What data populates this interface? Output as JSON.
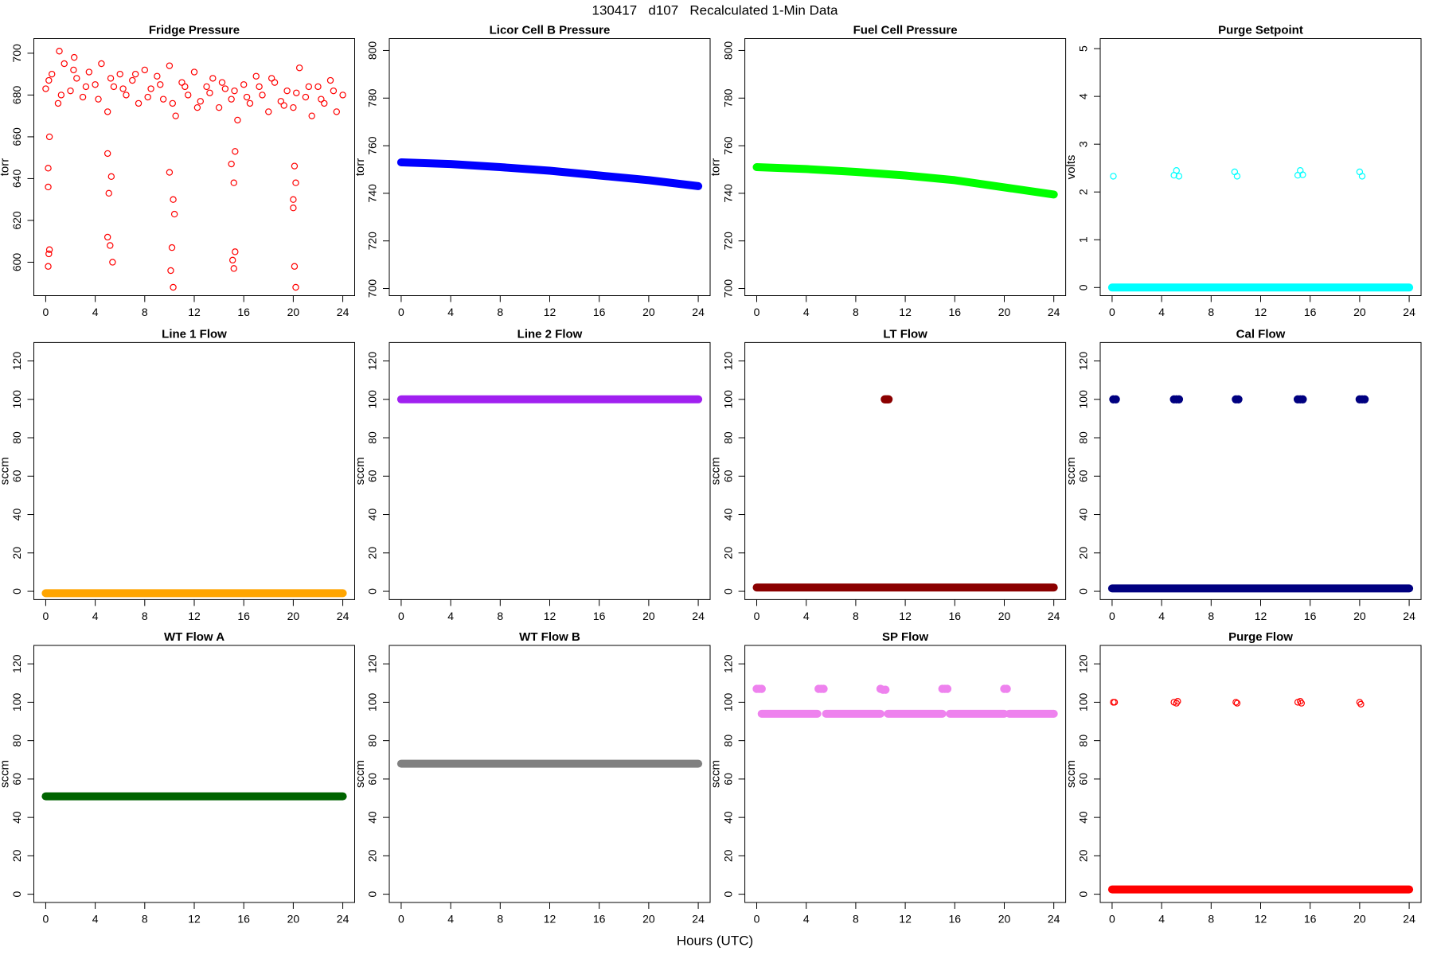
{
  "title": "130417   d107   Recalculated 1-Min Data",
  "x_label": "Hours (UTC)",
  "chart_data": [
    {
      "type": "scatter",
      "title": "Fridge Pressure",
      "y_label": "torr",
      "xlim": [
        -0.96,
        24.96
      ],
      "xticks": [
        0,
        4,
        8,
        12,
        16,
        20,
        24
      ],
      "ylim": [
        584,
        707
      ],
      "yticks": [
        600,
        620,
        640,
        660,
        680,
        700
      ],
      "series": [
        {
          "mode": "points",
          "marker": "open",
          "color": "#ff0000",
          "x": [
            0,
            0.5,
            1,
            1.5,
            2,
            2.5,
            3,
            3.5,
            4,
            4.5,
            5,
            5.5,
            6,
            6.5,
            7,
            7.5,
            8,
            8.5,
            9,
            9.5,
            10,
            10.5,
            11,
            11.5,
            12,
            12.5,
            13,
            13.5,
            14,
            14.5,
            15,
            15.5,
            16,
            16.5,
            17,
            17.5,
            18,
            18.5,
            19,
            19.5,
            20,
            20.5,
            21,
            21.5,
            22,
            22.5,
            23,
            23.5,
            24,
            0.25,
            1.25,
            2.25,
            3.25,
            4.25,
            5.25,
            6.25,
            7.25,
            8.25,
            9.25,
            10.25,
            11.25,
            12.25,
            13.25,
            14.25,
            15.25,
            16.25,
            17.25,
            18.25,
            19.25,
            20.25,
            21.25,
            22.25,
            23.25,
            1.1,
            2.3,
            0.2,
            0.3,
            0.2,
            0.25,
            0.2,
            0.3,
            5.0,
            5.3,
            5.1,
            5.2,
            5.4,
            5.0,
            10.0,
            10.3,
            10.4,
            10.2,
            10.3,
            10.1,
            15.0,
            15.2,
            15.3,
            15.1,
            15.3,
            15.2,
            20.1,
            20.0,
            20.2,
            20.1,
            20.2,
            20.0
          ],
          "values": [
            683,
            690,
            676,
            695,
            682,
            688,
            679,
            691,
            685,
            695,
            672,
            684,
            690,
            680,
            687,
            676,
            692,
            683,
            689,
            678,
            694,
            670,
            686,
            680,
            691,
            677,
            684,
            688,
            674,
            683,
            678,
            668,
            685,
            676,
            689,
            680,
            672,
            686,
            677,
            682,
            674,
            693,
            679,
            670,
            684,
            676,
            687,
            672,
            680,
            687,
            680,
            692,
            684,
            678,
            688,
            683,
            690,
            679,
            685,
            676,
            684,
            674,
            681,
            686,
            682,
            679,
            684,
            688,
            675,
            681,
            684,
            678,
            682,
            701,
            698,
            645,
            660,
            636,
            604,
            598,
            606,
            652,
            641,
            633,
            608,
            600,
            612,
            643,
            630,
            623,
            607,
            588,
            596,
            647,
            638,
            653,
            601,
            605,
            597,
            646,
            630,
            638,
            598,
            588,
            626
          ]
        }
      ]
    },
    {
      "type": "scatter",
      "title": "Licor Cell B Pressure",
      "y_label": "torr",
      "xlim": [
        -0.96,
        24.96
      ],
      "xticks": [
        0,
        4,
        8,
        12,
        16,
        20,
        24
      ],
      "ylim": [
        697,
        805
      ],
      "yticks": [
        700,
        720,
        740,
        760,
        780,
        800
      ],
      "series": [
        {
          "mode": "band",
          "color": "#0000ff",
          "x": [
            0,
            4,
            8,
            12,
            16,
            20,
            24
          ],
          "values": [
            753,
            752.3,
            751,
            749.5,
            747.5,
            745.5,
            743
          ]
        }
      ]
    },
    {
      "type": "scatter",
      "title": "Fuel Cell Pressure",
      "y_label": "torr",
      "xlim": [
        -0.96,
        24.96
      ],
      "xticks": [
        0,
        4,
        8,
        12,
        16,
        20,
        24
      ],
      "ylim": [
        697,
        805
      ],
      "yticks": [
        700,
        720,
        740,
        760,
        780,
        800
      ],
      "series": [
        {
          "mode": "band",
          "color": "#00ff00",
          "x": [
            0,
            4,
            8,
            12,
            16,
            20,
            24
          ],
          "values": [
            751,
            750.2,
            749,
            747.5,
            745.5,
            742.5,
            739.5
          ]
        }
      ]
    },
    {
      "type": "scatter",
      "title": "Purge Setpoint",
      "y_label": "volts",
      "xlim": [
        -0.96,
        24.96
      ],
      "xticks": [
        0,
        4,
        8,
        12,
        16,
        20,
        24
      ],
      "ylim": [
        -0.17,
        5.21
      ],
      "yticks": [
        0,
        1,
        2,
        3,
        4,
        5
      ],
      "series": [
        {
          "mode": "band",
          "color": "#00ffff",
          "x": [
            0,
            24
          ],
          "values": [
            0,
            0
          ]
        },
        {
          "mode": "points",
          "marker": "open",
          "color": "#00ffff",
          "x": [
            0.1,
            5.0,
            5.2,
            5.4,
            9.9,
            10.1,
            15.0,
            15.2,
            15.4,
            20.0,
            20.2
          ],
          "values": [
            2.33,
            2.35,
            2.45,
            2.33,
            2.42,
            2.33,
            2.35,
            2.45,
            2.36,
            2.42,
            2.33
          ]
        }
      ]
    },
    {
      "type": "scatter",
      "title": "Line 1 Flow",
      "y_label": "sccm",
      "xlim": [
        -0.96,
        24.96
      ],
      "xticks": [
        0,
        4,
        8,
        12,
        16,
        20,
        24
      ],
      "ylim": [
        -4.3,
        129.6
      ],
      "yticks": [
        0,
        20,
        40,
        60,
        80,
        100,
        120
      ],
      "series": [
        {
          "mode": "band",
          "color": "#ffa500",
          "x": [
            0,
            24
          ],
          "values": [
            -1,
            -1
          ]
        }
      ]
    },
    {
      "type": "scatter",
      "title": "Line 2 Flow",
      "y_label": "sccm",
      "xlim": [
        -0.96,
        24.96
      ],
      "xticks": [
        0,
        4,
        8,
        12,
        16,
        20,
        24
      ],
      "ylim": [
        -4.3,
        129.6
      ],
      "yticks": [
        0,
        20,
        40,
        60,
        80,
        100,
        120
      ],
      "series": [
        {
          "mode": "band",
          "color": "#a020f0",
          "x": [
            0,
            24
          ],
          "values": [
            100,
            100
          ]
        }
      ]
    },
    {
      "type": "scatter",
      "title": "LT Flow",
      "y_label": "sccm",
      "xlim": [
        -0.96,
        24.96
      ],
      "xticks": [
        0,
        4,
        8,
        12,
        16,
        20,
        24
      ],
      "ylim": [
        -4.3,
        129.6
      ],
      "yticks": [
        0,
        20,
        40,
        60,
        80,
        100,
        120
      ],
      "series": [
        {
          "mode": "band",
          "color": "#8b0000",
          "x": [
            0,
            24
          ],
          "values": [
            2,
            2
          ]
        },
        {
          "mode": "points",
          "marker": "filled",
          "color": "#8b0000",
          "x": [
            10.35,
            10.45,
            10.55,
            10.65
          ],
          "values": [
            100,
            100,
            100,
            100
          ]
        }
      ]
    },
    {
      "type": "scatter",
      "title": "Cal Flow",
      "y_label": "sccm",
      "xlim": [
        -0.96,
        24.96
      ],
      "xticks": [
        0,
        4,
        8,
        12,
        16,
        20,
        24
      ],
      "ylim": [
        -4.3,
        129.6
      ],
      "yticks": [
        0,
        20,
        40,
        60,
        80,
        100,
        120
      ],
      "series": [
        {
          "mode": "band",
          "color": "#000080",
          "x": [
            0,
            24
          ],
          "values": [
            1.5,
            1.5
          ]
        },
        {
          "mode": "points",
          "marker": "filled",
          "color": "#000080",
          "x": [
            0.1,
            0.3,
            5.0,
            5.2,
            5.4,
            10.0,
            10.2,
            15.0,
            15.2,
            15.4,
            20.0,
            20.2,
            20.4
          ],
          "values": [
            100,
            100,
            100,
            100,
            100,
            100,
            100,
            100,
            100,
            100,
            100,
            100,
            100
          ]
        }
      ]
    },
    {
      "type": "scatter",
      "title": "WT Flow A",
      "y_label": "sccm",
      "xlim": [
        -0.96,
        24.96
      ],
      "xticks": [
        0,
        4,
        8,
        12,
        16,
        20,
        24
      ],
      "ylim": [
        -4.3,
        129.6
      ],
      "yticks": [
        0,
        20,
        40,
        60,
        80,
        100,
        120
      ],
      "series": [
        {
          "mode": "band",
          "color": "#006400",
          "x": [
            0,
            24
          ],
          "values": [
            51,
            51
          ]
        }
      ]
    },
    {
      "type": "scatter",
      "title": "WT Flow B",
      "y_label": "sccm",
      "xlim": [
        -0.96,
        24.96
      ],
      "xticks": [
        0,
        4,
        8,
        12,
        16,
        20,
        24
      ],
      "ylim": [
        -4.3,
        129.6
      ],
      "yticks": [
        0,
        20,
        40,
        60,
        80,
        100,
        120
      ],
      "series": [
        {
          "mode": "band",
          "color": "#808080",
          "x": [
            0,
            24
          ],
          "values": [
            68,
            68
          ]
        }
      ]
    },
    {
      "type": "scatter",
      "title": "SP Flow",
      "y_label": "sccm",
      "xlim": [
        -0.96,
        24.96
      ],
      "xticks": [
        0,
        4,
        8,
        12,
        16,
        20,
        24
      ],
      "ylim": [
        -4.3,
        129.6
      ],
      "yticks": [
        0,
        20,
        40,
        60,
        80,
        100,
        120
      ],
      "series": [
        {
          "mode": "band",
          "color": "#ee82ee",
          "x": [
            0.4,
            4.9,
            5.2,
            5.6,
            10.0,
            10.3,
            10.6,
            15.0,
            15.3,
            15.6,
            20.0,
            20.2,
            20.4,
            24
          ],
          "values": [
            94,
            94,
            null,
            94,
            94,
            null,
            94,
            94,
            null,
            94,
            94,
            null,
            94,
            94
          ]
        },
        {
          "mode": "points",
          "marker": "filled",
          "color": "#ee82ee",
          "x": [
            0.0,
            0.2,
            0.4,
            5.0,
            5.2,
            5.4,
            10.0,
            10.2,
            10.4,
            15.0,
            15.2,
            15.4,
            20.0,
            20.2
          ],
          "values": [
            107,
            107,
            107,
            107,
            107,
            107,
            107,
            106.5,
            106.5,
            107,
            107,
            107,
            107,
            107
          ]
        }
      ]
    },
    {
      "type": "scatter",
      "title": "Purge Flow",
      "y_label": "sccm",
      "xlim": [
        -0.96,
        24.96
      ],
      "xticks": [
        0,
        4,
        8,
        12,
        16,
        20,
        24
      ],
      "ylim": [
        -4.3,
        129.6
      ],
      "yticks": [
        0,
        20,
        40,
        60,
        80,
        100,
        120
      ],
      "series": [
        {
          "mode": "band",
          "color": "#ff0000",
          "x": [
            0,
            24
          ],
          "values": [
            2.5,
            2.5
          ]
        },
        {
          "mode": "points",
          "marker": "open",
          "color": "#ff0000",
          "x": [
            0.1,
            0.2,
            5.0,
            5.2,
            5.3,
            10.0,
            10.1,
            15.0,
            15.2,
            15.3,
            20.0,
            20.1
          ],
          "values": [
            100,
            100,
            100,
            99.5,
            100.5,
            100,
            99.5,
            100,
            100.5,
            99.5,
            100,
            99
          ]
        }
      ]
    }
  ]
}
